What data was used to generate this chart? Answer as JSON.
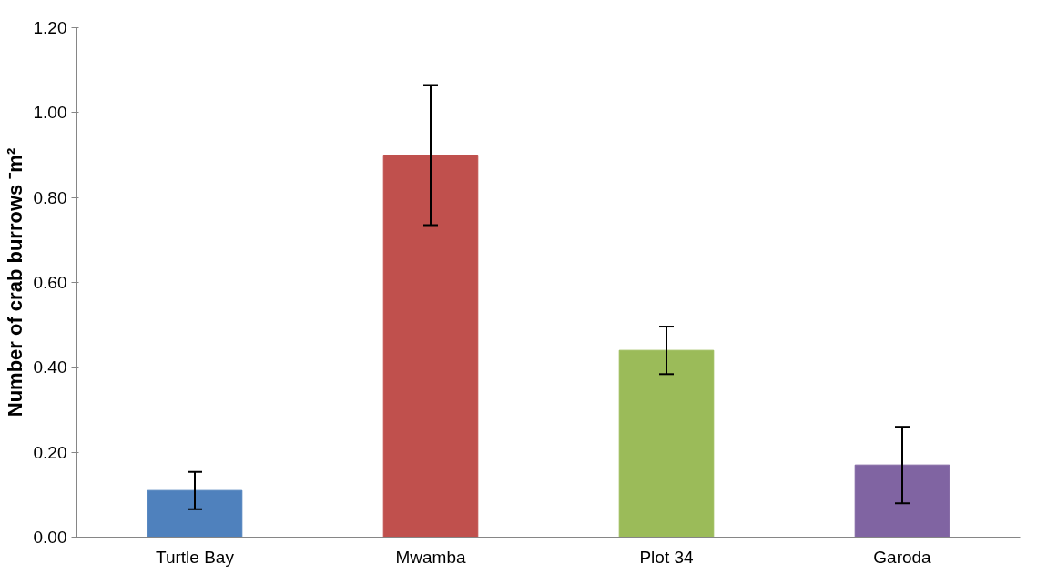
{
  "chart_data": {
    "type": "bar",
    "ylabel": "Number of crab burrows ⁻m²",
    "categories": [
      "Turtle Bay",
      "Mwamba",
      "Plot 34",
      "Garoda"
    ],
    "values": [
      0.11,
      0.9,
      0.44,
      0.17
    ],
    "errors": [
      0.044,
      0.165,
      0.056,
      0.09
    ],
    "colors": [
      "#4f81bd",
      "#c0504d",
      "#9bbb59",
      "#8064a2"
    ],
    "ylim": [
      0,
      1.2
    ],
    "yticks": [
      {
        "value": 0,
        "label": "0.00"
      },
      {
        "value": 0.2,
        "label": "0.20"
      },
      {
        "value": 0.4,
        "label": "0.40"
      },
      {
        "value": 0.6,
        "label": "0.60"
      },
      {
        "value": 0.8,
        "label": "0.80"
      },
      {
        "value": 1.0,
        "label": "1.00"
      },
      {
        "value": 1.2,
        "label": "1.20"
      }
    ],
    "grid": false
  }
}
